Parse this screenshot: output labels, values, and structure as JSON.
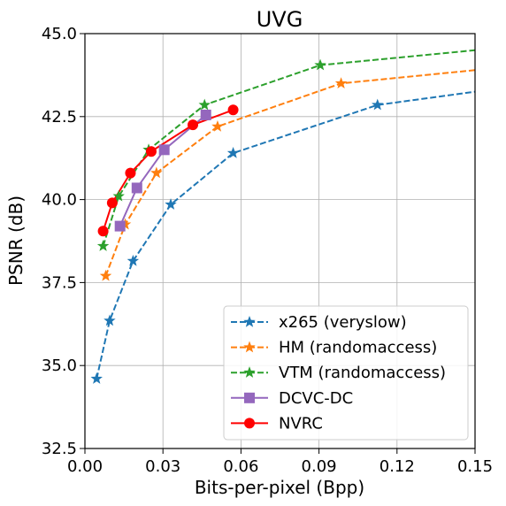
{
  "chart_data": {
    "type": "line",
    "title": "UVG",
    "xlabel": "Bits-per-pixel (Bpp)",
    "ylabel": "PSNR (dB)",
    "xlim": [
      0.0,
      0.15
    ],
    "ylim": [
      32.5,
      45.0
    ],
    "xticks": [
      "0.00",
      "0.03",
      "0.06",
      "0.09",
      "0.12",
      "0.15"
    ],
    "yticks": [
      "32.5",
      "35.0",
      "37.5",
      "40.0",
      "42.5",
      "45.0"
    ],
    "grid": true,
    "legend_position": "lower-right",
    "series": [
      {
        "name": "x265 (veryslow)",
        "color": "#1f77b4",
        "linestyle": "dashed",
        "marker": "star",
        "points": [
          [
            0.0045,
            34.6
          ],
          [
            0.0095,
            36.35
          ],
          [
            0.0185,
            38.15
          ],
          [
            0.033,
            39.85
          ],
          [
            0.057,
            41.4
          ],
          [
            0.1125,
            42.85
          ],
          [
            0.15,
            43.25
          ]
        ]
      },
      {
        "name": "HM (randomaccess)",
        "color": "#ff7f0e",
        "linestyle": "dashed",
        "marker": "star",
        "points": [
          [
            0.008,
            37.7
          ],
          [
            0.0155,
            39.25
          ],
          [
            0.0275,
            40.8
          ],
          [
            0.051,
            42.2
          ],
          [
            0.0985,
            43.5
          ],
          [
            0.15,
            43.9
          ]
        ]
      },
      {
        "name": "VTM (randomaccess)",
        "color": "#2ca02c",
        "linestyle": "dashed",
        "marker": "star",
        "points": [
          [
            0.007,
            38.6
          ],
          [
            0.013,
            40.1
          ],
          [
            0.0245,
            41.5
          ],
          [
            0.046,
            42.85
          ],
          [
            0.0905,
            44.05
          ],
          [
            0.15,
            44.5
          ]
        ]
      },
      {
        "name": "DCVC-DC",
        "color": "#9467bd",
        "linestyle": "solid",
        "marker": "square",
        "points": [
          [
            0.0135,
            39.2
          ],
          [
            0.02,
            40.35
          ],
          [
            0.0305,
            41.5
          ],
          [
            0.0465,
            42.55
          ]
        ]
      },
      {
        "name": "NVRC",
        "color": "#ff0000",
        "linestyle": "solid",
        "marker": "circle",
        "points": [
          [
            0.007,
            39.05
          ],
          [
            0.0105,
            39.9
          ],
          [
            0.0175,
            40.8
          ],
          [
            0.0255,
            41.45
          ],
          [
            0.0415,
            42.25
          ],
          [
            0.057,
            42.7
          ]
        ]
      }
    ]
  }
}
